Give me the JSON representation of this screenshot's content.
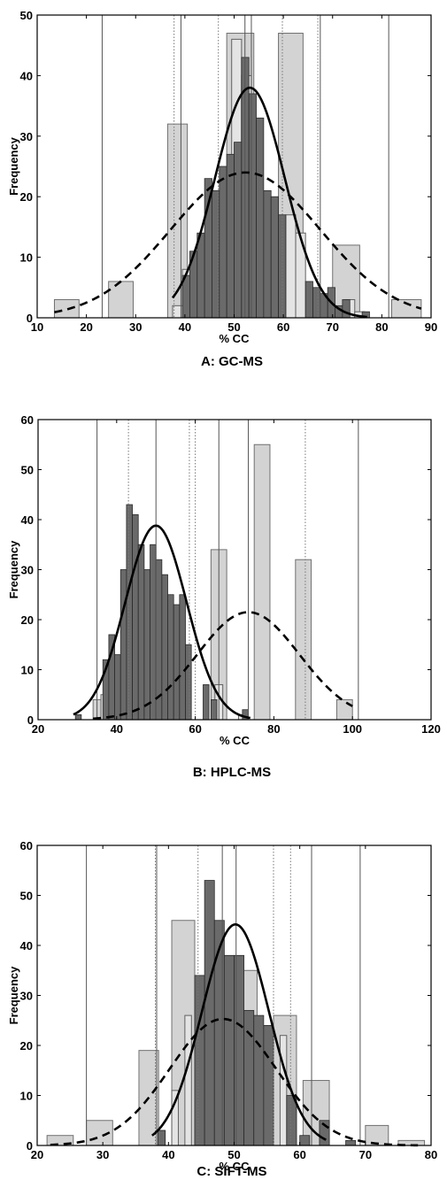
{
  "chart_data": [
    {
      "type": "bar",
      "caption": "A: GC-MS",
      "xlabel": "% CC",
      "ylabel": "Frequency",
      "xlim": [
        10,
        90
      ],
      "ylim": [
        0,
        50
      ],
      "xticks": [
        10,
        20,
        30,
        40,
        50,
        60,
        70,
        80,
        90
      ],
      "yticks": [
        0,
        10,
        20,
        30,
        40,
        50
      ],
      "series": [
        {
          "style": "light-wide",
          "bars": [
            [
              13.5,
              18.5,
              3
            ],
            [
              24.5,
              29.5,
              6
            ],
            [
              36.5,
              40.5,
              32
            ],
            [
              48.5,
              54,
              47
            ],
            [
              59,
              64,
              47
            ],
            [
              70,
              75.5,
              12
            ],
            [
              82,
              88,
              3
            ]
          ]
        },
        {
          "style": "light-narrow",
          "bars": [
            [
              37.5,
              39.5,
              2
            ],
            [
              39.5,
              41.5,
              8
            ],
            [
              49.5,
              51.5,
              46
            ],
            [
              51.5,
              53.5,
              40
            ],
            [
              60.5,
              62.5,
              17
            ],
            [
              62.5,
              64.5,
              14
            ],
            [
              72.5,
              74.5,
              3
            ],
            [
              74.5,
              76.5,
              1
            ]
          ]
        },
        {
          "style": "dark",
          "bars": [
            [
              39.5,
              41,
              7
            ],
            [
              41,
              42.5,
              11
            ],
            [
              42.5,
              44,
              14
            ],
            [
              44,
              45.5,
              23
            ],
            [
              45.5,
              47,
              21
            ],
            [
              47,
              48.5,
              25
            ],
            [
              48.5,
              50,
              27
            ],
            [
              50,
              51.5,
              29
            ],
            [
              51.5,
              53,
              43
            ],
            [
              53,
              54.5,
              37
            ],
            [
              54.5,
              56,
              33
            ],
            [
              56,
              57.5,
              21
            ],
            [
              57.5,
              59,
              20
            ],
            [
              59,
              60.5,
              17
            ],
            [
              64.5,
              66,
              6
            ],
            [
              66,
              67.5,
              5
            ],
            [
              67.5,
              69,
              4
            ],
            [
              69,
              70.5,
              5
            ],
            [
              70.5,
              72,
              2
            ],
            [
              72,
              73.5,
              3
            ],
            [
              76,
              77.5,
              1
            ]
          ]
        },
        {
          "style": "solid-curve",
          "mean": 53.2,
          "sd": 7.1,
          "peak": 38,
          "range": [
            37.5,
            77
          ]
        },
        {
          "style": "dashed-curve",
          "mean": 52.3,
          "sd": 15.2,
          "peak": 24,
          "range": [
            13.5,
            88
          ]
        }
      ],
      "vlines": {
        "solid": [
          23.2,
          39.2,
          52.2,
          53.5,
          67.5,
          81.4
        ],
        "dotted": [
          37.8,
          46.8,
          59.8,
          67.0
        ]
      }
    },
    {
      "type": "bar",
      "caption": "B: HPLC-MS",
      "xlabel": "% CC",
      "ylabel": "Frequency",
      "xlim": [
        20,
        120
      ],
      "ylim": [
        0,
        60
      ],
      "xticks": [
        20,
        40,
        60,
        80,
        100,
        120
      ],
      "yticks": [
        0,
        10,
        20,
        30,
        40,
        50,
        60
      ],
      "series": [
        {
          "style": "light-wide",
          "bars": [
            [
              34,
              38,
              4
            ],
            [
              43.5,
              47.5,
              6
            ],
            [
              54.5,
              58.5,
              14
            ],
            [
              64,
              68,
              34
            ],
            [
              75,
              79,
              55
            ],
            [
              85.5,
              89.5,
              32
            ],
            [
              96,
              100,
              4
            ]
          ]
        },
        {
          "style": "light-narrow",
          "bars": [
            [
              36,
              38,
              5
            ],
            [
              45,
              47,
              6
            ],
            [
              55,
              57,
              14
            ],
            [
              65,
              67,
              7
            ],
            [
              71,
              73,
              1
            ]
          ]
        },
        {
          "style": "dark",
          "bars": [
            [
              29.5,
              31,
              1
            ],
            [
              36.5,
              38,
              12
            ],
            [
              38,
              39.5,
              17
            ],
            [
              39.5,
              41,
              13
            ],
            [
              41,
              42.5,
              30
            ],
            [
              42.5,
              44,
              43
            ],
            [
              44,
              45.5,
              41
            ],
            [
              45.5,
              47,
              35
            ],
            [
              47,
              48.5,
              30
            ],
            [
              48.5,
              50,
              35
            ],
            [
              50,
              51.5,
              32
            ],
            [
              51.5,
              53,
              29
            ],
            [
              53,
              54.5,
              25
            ],
            [
              54.5,
              56,
              23
            ],
            [
              56,
              57.5,
              25
            ],
            [
              57.5,
              59,
              15
            ],
            [
              62,
              63.5,
              7
            ],
            [
              64,
              65.5,
              4
            ],
            [
              72,
              73.5,
              2
            ]
          ]
        },
        {
          "style": "solid-curve",
          "mean": 50.0,
          "sd": 7.8,
          "peak": 38.8,
          "range": [
            29,
            74
          ]
        },
        {
          "style": "dashed-curve",
          "mean": 73.5,
          "sd": 13.0,
          "peak": 21.5,
          "range": [
            34,
            100
          ]
        }
      ],
      "vlines": {
        "solid": [
          35.0,
          50.0,
          66.0,
          73.5,
          101.5
        ],
        "dotted": [
          43.0,
          58.5,
          60.0,
          88.0
        ]
      }
    },
    {
      "type": "bar",
      "caption": "C: SIFT-MS",
      "xlabel": "% CC",
      "ylabel": "Frequency",
      "xlim": [
        20,
        80
      ],
      "ylim": [
        0,
        60
      ],
      "xticks": [
        20,
        30,
        40,
        50,
        60,
        70,
        80
      ],
      "yticks": [
        0,
        10,
        20,
        30,
        40,
        50,
        60
      ],
      "series": [
        {
          "style": "light-wide",
          "bars": [
            [
              21.5,
              25.5,
              2
            ],
            [
              27.5,
              31.5,
              5
            ],
            [
              35.5,
              38.5,
              19
            ],
            [
              40.5,
              44,
              45
            ],
            [
              47,
              50.5,
              35
            ],
            [
              50.5,
              53.5,
              35
            ],
            [
              56,
              59.5,
              26
            ],
            [
              60.5,
              64.5,
              13
            ],
            [
              70,
              73.5,
              4
            ],
            [
              75,
              79,
              1
            ]
          ]
        },
        {
          "style": "light-narrow",
          "bars": [
            [
              38.5,
              39.5,
              3
            ],
            [
              40.5,
              41.5,
              11
            ],
            [
              42.5,
              43.5,
              26
            ],
            [
              49,
              50,
              20
            ],
            [
              57,
              58,
              22
            ]
          ]
        },
        {
          "style": "dark",
          "bars": [
            [
              38.4,
              39.5,
              3
            ],
            [
              44,
              45.5,
              34
            ],
            [
              45.5,
              47,
              53
            ],
            [
              47,
              48.5,
              45
            ],
            [
              48.5,
              50,
              38
            ],
            [
              50,
              51.5,
              38
            ],
            [
              51.5,
              53,
              27
            ],
            [
              53,
              54.5,
              26
            ],
            [
              54.5,
              56,
              24
            ],
            [
              58,
              59.5,
              10
            ],
            [
              60,
              61.5,
              2
            ],
            [
              63,
              64.5,
              5
            ],
            [
              67,
              68.5,
              1
            ]
          ]
        },
        {
          "style": "solid-curve",
          "mean": 50.2,
          "sd": 5.1,
          "peak": 44.2,
          "range": [
            37.5,
            64
          ]
        },
        {
          "style": "dashed-curve",
          "mean": 48.3,
          "sd": 8.1,
          "peak": 25.3,
          "range": [
            22,
            78
          ]
        }
      ],
      "vlines": {
        "solid": [
          27.5,
          38.2,
          48.2,
          50.3,
          61.8,
          69.2
        ],
        "dotted": [
          38.0,
          44.5,
          56.0,
          58.6
        ]
      }
    }
  ]
}
